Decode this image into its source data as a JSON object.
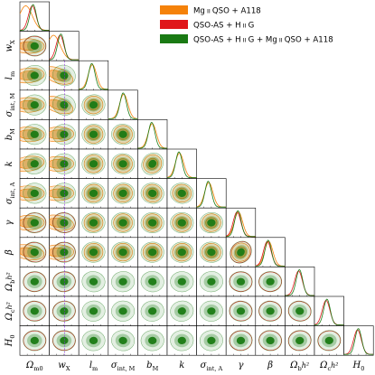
{
  "chart_data": {
    "type": "corner",
    "parameters": [
      {
        "tex": "Ω_m0",
        "base": "Ω",
        "sub": "m0",
        "sup": "",
        "lim": [
          0.0,
          0.6
        ]
      },
      {
        "tex": "w_X",
        "base": "w",
        "sub": "X",
        "sup": "",
        "lim": [
          -2.0,
          0.0
        ]
      },
      {
        "tex": "l_m",
        "base": "l",
        "sub": "m",
        "sup": "",
        "lim": [
          44,
          48
        ]
      },
      {
        "tex": "σ_int,M",
        "base": "σ",
        "sub": "int, M",
        "sup": "",
        "lim": [
          0.2,
          0.34
        ]
      },
      {
        "tex": "b_M",
        "base": "b",
        "sub": "M",
        "sup": "",
        "lim": [
          0.35,
          0.55
        ]
      },
      {
        "tex": "k",
        "base": "k",
        "sub": "",
        "sup": "",
        "lim": [
          -1.5,
          1.5
        ]
      },
      {
        "tex": "σ_int,A",
        "base": "σ",
        "sub": "int, A",
        "sup": "",
        "lim": [
          0.2,
          0.4
        ]
      },
      {
        "tex": "γ",
        "base": "γ",
        "sub": "",
        "sup": "",
        "lim": [
          0.6,
          0.7
        ]
      },
      {
        "tex": "β",
        "base": "β",
        "sub": "",
        "sup": "",
        "lim": [
          7.5,
          9.0
        ]
      },
      {
        "tex": "Ω_bh^2",
        "base": "Ω",
        "sub": "b",
        "sup": "h²",
        "lim": [
          0.0,
          0.11
        ]
      },
      {
        "tex": "Ω_ch^2",
        "base": "Ω",
        "sub": "c",
        "sup": "h²",
        "lim": [
          0.0,
          0.3
        ]
      },
      {
        "tex": "H_0",
        "base": "H",
        "sub": "0",
        "sup": "",
        "lim": [
          50,
          100
        ]
      }
    ],
    "series": [
      {
        "name": "Mg II QSO + A118",
        "label_parts": [
          "Mg",
          "II",
          " QSO + A118"
        ],
        "color": "#f5820a",
        "params": [
          0,
          1,
          2,
          3,
          4,
          5,
          6,
          7,
          8
        ]
      },
      {
        "name": "QSO-AS + H IIG",
        "label_parts": [
          "QSO-AS + H",
          "II",
          "G"
        ],
        "color": "#e0171a",
        "params": [
          0,
          1,
          7,
          8,
          9,
          10,
          11
        ]
      },
      {
        "name": "QSO-AS + H IIG + Mg II QSO + A118",
        "label_parts": [
          "QSO-AS + H",
          "II",
          "G + Mg",
          "II",
          " QSO + A118"
        ],
        "color": "#1a7a14",
        "params": [
          0,
          1,
          2,
          3,
          4,
          5,
          6,
          7,
          8,
          9,
          10,
          11
        ]
      }
    ],
    "legend": "top-right",
    "grid": false
  }
}
